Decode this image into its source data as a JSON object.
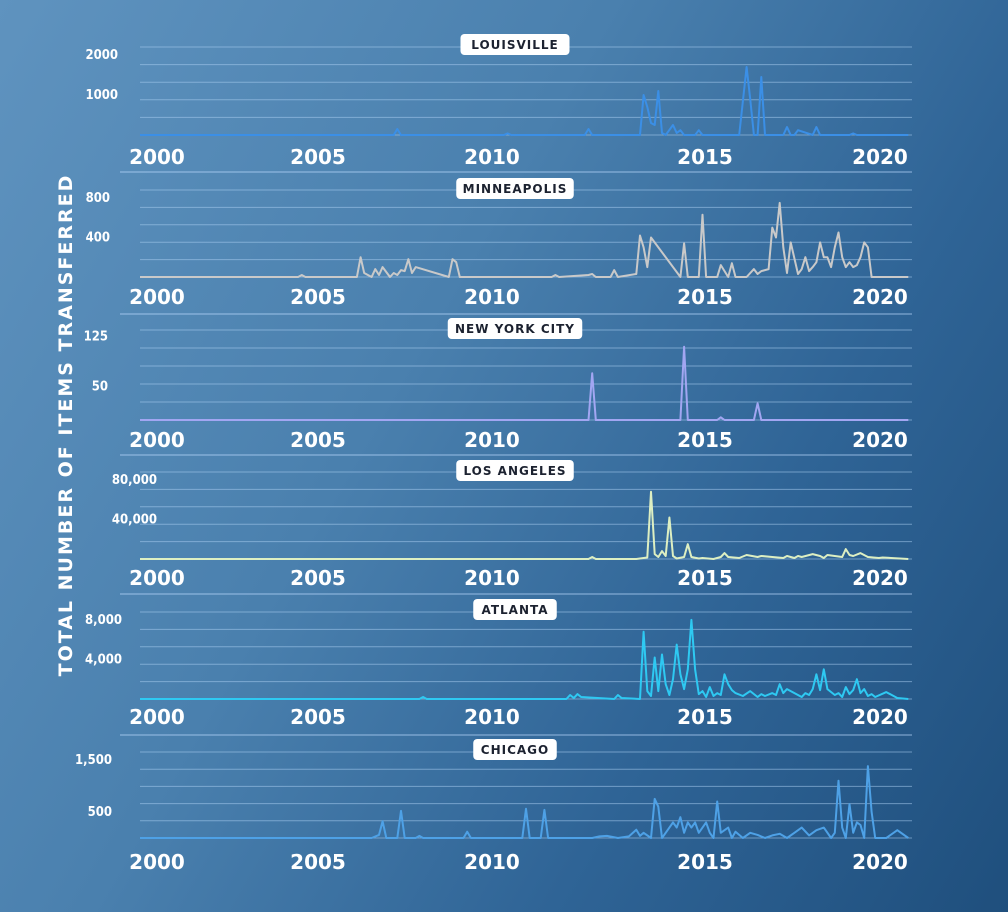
{
  "ylabel": "TOTAL NUMBER OF ITEMS TRANSFERRED",
  "chart_data": [
    {
      "type": "line",
      "title": "LOUISVILLE",
      "color": "#3b8fe6",
      "x": [
        2000,
        2005,
        2006.9,
        2007,
        2007.1,
        2009.9,
        2010,
        2010.1,
        2012.1,
        2012.2,
        2012.3,
        2013.6,
        2013.7,
        2013.8,
        2013.9,
        2014,
        2014.1,
        2014.2,
        2014.3,
        2014.5,
        2014.6,
        2014.7,
        2014.8,
        2015.1,
        2015.2,
        2015.3,
        2016.3,
        2016.5,
        2016.6,
        2016.7,
        2016.8,
        2016.9,
        2017,
        2017.1,
        2017.5,
        2017.6,
        2017.7,
        2017.8,
        2017.9,
        2018.3,
        2018.4,
        2018.5,
        2019.3,
        2019.4,
        2019.5,
        2020,
        2020.9
      ],
      "y": [
        0,
        0,
        0,
        150,
        0,
        0,
        40,
        0,
        0,
        150,
        0,
        0,
        1000,
        700,
        300,
        250,
        1100,
        50,
        0,
        250,
        50,
        120,
        0,
        0,
        120,
        0,
        0,
        1700,
        900,
        0,
        0,
        1450,
        0,
        0,
        0,
        200,
        0,
        0,
        120,
        0,
        200,
        0,
        0,
        40,
        0,
        0,
        0
      ],
      "yticks": [
        "1000",
        "2000"
      ],
      "ytick_values": [
        1000,
        2000
      ],
      "ylim": [
        0,
        2200
      ],
      "xticks": [
        "2000",
        "2005",
        "2010",
        "2015",
        "2020"
      ],
      "xtick_values": [
        2000,
        2005,
        2010,
        2015,
        2020
      ],
      "xlim": [
        2000,
        2021
      ]
    },
    {
      "type": "line",
      "title": "MINNEAPOLIS",
      "color": "#c9c9c9",
      "x": [
        2000,
        2004.3,
        2004.4,
        2004.5,
        2005.9,
        2006,
        2006.1,
        2006.3,
        2006.4,
        2006.5,
        2006.6,
        2006.8,
        2006.9,
        2007.0,
        2007.1,
        2007.2,
        2007.3,
        2007.4,
        2007.5,
        2008.4,
        2008.5,
        2008.6,
        2008.7,
        2011.2,
        2011.3,
        2011.4,
        2012.2,
        2012.3,
        2012.4,
        2012.8,
        2012.9,
        2013,
        2013.5,
        2013.6,
        2013.7,
        2013.8,
        2013.9,
        2014.7,
        2014.8,
        2014.9,
        2015.2,
        2015.3,
        2015.4,
        2015.7,
        2015.8,
        2016,
        2016.1,
        2016.2,
        2016.5,
        2016.7,
        2016.8,
        2016.9,
        2017.1,
        2017.2,
        2017.3,
        2017.4,
        2017.5,
        2017.6,
        2017.7,
        2017.9,
        2018,
        2018.1,
        2018.2,
        2018.3,
        2018.4,
        2018.5,
        2018.6,
        2018.7,
        2018.8,
        2018.9,
        2019,
        2019.1,
        2019.2,
        2019.3,
        2019.4,
        2019.5,
        2019.6,
        2019.7,
        2019.8,
        2019.9,
        2020,
        2020.3,
        2020.5,
        2020.9
      ],
      "y": [
        0,
        0,
        20,
        0,
        0,
        200,
        40,
        0,
        80,
        20,
        100,
        0,
        40,
        20,
        70,
        60,
        180,
        40,
        100,
        0,
        180,
        150,
        0,
        0,
        20,
        0,
        20,
        30,
        0,
        0,
        70,
        0,
        30,
        420,
        300,
        100,
        400,
        0,
        340,
        0,
        0,
        630,
        0,
        0,
        120,
        0,
        140,
        0,
        0,
        80,
        30,
        60,
        80,
        500,
        400,
        750,
        300,
        40,
        350,
        30,
        80,
        200,
        60,
        100,
        150,
        350,
        200,
        200,
        100,
        300,
        450,
        200,
        100,
        150,
        100,
        120,
        200,
        350,
        300,
        0,
        0,
        0,
        0,
        0
      ],
      "yticks": [
        "400",
        "800"
      ],
      "ytick_values": [
        400,
        800
      ],
      "ylim": [
        0,
        880
      ],
      "xticks": [
        "2000",
        "2005",
        "2010",
        "2015",
        "2020"
      ],
      "xtick_values": [
        2000,
        2005,
        2010,
        2015,
        2020
      ],
      "xlim": [
        2000,
        2021
      ]
    },
    {
      "type": "line",
      "title": "NEW YORK CITY",
      "color": "#a2a6f2",
      "x": [
        2000,
        2012.2,
        2012.3,
        2012.4,
        2014.7,
        2014.8,
        2014.9,
        2015.7,
        2015.8,
        2015.9,
        2016.7,
        2016.8,
        2016.9,
        2020.9
      ],
      "y": [
        0,
        0,
        70,
        0,
        0,
        110,
        0,
        0,
        4,
        0,
        0,
        25,
        0,
        0
      ],
      "yticks": [
        "50",
        "125"
      ],
      "ytick_values": [
        50,
        125
      ],
      "ylim": [
        0,
        135
      ],
      "xticks": [
        "2000",
        "2005",
        "2010",
        "2015",
        "2020"
      ],
      "xtick_values": [
        2000,
        2005,
        2010,
        2015,
        2020
      ],
      "xlim": [
        2000,
        2021
      ]
    },
    {
      "type": "line",
      "title": "LOS ANGELES",
      "color": "#ddefc2",
      "x": [
        2000,
        2012.2,
        2012.3,
        2012.4,
        2013.5,
        2013.8,
        2013.9,
        2014,
        2014.1,
        2014.2,
        2014.3,
        2014.4,
        2014.5,
        2014.6,
        2014.8,
        2014.9,
        2015.0,
        2015.2,
        2015.3,
        2015.6,
        2015.8,
        2015.9,
        2016.0,
        2016.3,
        2016.5,
        2016.8,
        2016.9,
        2017.2,
        2017.5,
        2017.6,
        2017.8,
        2017.9,
        2018.0,
        2018.3,
        2018.5,
        2018.6,
        2018.7,
        2019.1,
        2019.2,
        2019.3,
        2019.4,
        2019.6,
        2019.8,
        2020.1,
        2020.2,
        2020.9
      ],
      "y": [
        0,
        0,
        2000,
        0,
        0,
        1500,
        68000,
        5000,
        2000,
        8000,
        3000,
        42000,
        3000,
        500,
        2000,
        15000,
        2000,
        500,
        1000,
        0,
        2000,
        6000,
        2000,
        1000,
        4000,
        2000,
        3000,
        2000,
        1000,
        3000,
        1000,
        3000,
        2000,
        5000,
        3000,
        1000,
        4000,
        2000,
        10000,
        4000,
        3000,
        6000,
        2000,
        1000,
        1500,
        0
      ],
      "yticks": [
        "40,000",
        "80,000"
      ],
      "ytick_values": [
        40000,
        80000
      ],
      "ylim": [
        0,
        88000
      ],
      "xticks": [
        "2000",
        "2005",
        "2010",
        "2015",
        "2020"
      ],
      "xtick_values": [
        2000,
        2005,
        2010,
        2015,
        2020
      ],
      "xlim": [
        2000,
        2021
      ]
    },
    {
      "type": "line",
      "title": "ATLANTA",
      "color": "#2ec9f2",
      "x": [
        2000,
        2007.6,
        2007.7,
        2007.8,
        2011.6,
        2011.7,
        2011.8,
        2011.9,
        2012,
        2012.9,
        2013.0,
        2013.1,
        2013.6,
        2013.7,
        2013.8,
        2013.9,
        2014.0,
        2014.1,
        2014.2,
        2014.3,
        2014.4,
        2014.5,
        2014.6,
        2014.7,
        2014.8,
        2014.9,
        2015.0,
        2015.1,
        2015.2,
        2015.3,
        2015.4,
        2015.5,
        2015.6,
        2015.7,
        2015.8,
        2015.9,
        2016.0,
        2016.1,
        2016.2,
        2016.4,
        2016.6,
        2016.8,
        2016.9,
        2017.0,
        2017.2,
        2017.3,
        2017.4,
        2017.5,
        2017.6,
        2018.0,
        2018.1,
        2018.2,
        2018.3,
        2018.4,
        2018.5,
        2018.6,
        2018.7,
        2018.9,
        2019.0,
        2019.1,
        2019.2,
        2019.3,
        2019.4,
        2019.5,
        2019.6,
        2019.7,
        2019.8,
        2019.9,
        2020.0,
        2020.3,
        2020.6,
        2020.9
      ],
      "y": [
        0,
        0,
        200,
        0,
        0,
        400,
        100,
        500,
        200,
        0,
        400,
        100,
        0,
        6800,
        800,
        300,
        4200,
        800,
        4500,
        1500,
        400,
        2000,
        5500,
        2500,
        1000,
        3000,
        8000,
        3000,
        500,
        800,
        200,
        1200,
        300,
        600,
        400,
        2500,
        1500,
        900,
        600,
        300,
        800,
        200,
        500,
        300,
        600,
        400,
        1500,
        600,
        1000,
        200,
        600,
        400,
        1000,
        2500,
        900,
        3000,
        1000,
        400,
        600,
        200,
        1200,
        500,
        900,
        2000,
        600,
        1000,
        300,
        500,
        200,
        700,
        100,
        0
      ],
      "yticks": [
        "4,000",
        "8,000"
      ],
      "ytick_values": [
        4000,
        8000
      ],
      "ylim": [
        0,
        8800
      ],
      "xticks": [
        "2000",
        "2005",
        "2010",
        "2015",
        "2020"
      ],
      "xtick_values": [
        2000,
        2005,
        2010,
        2015,
        2020
      ],
      "xlim": [
        2000,
        2021
      ]
    },
    {
      "type": "line",
      "title": "CHICAGO",
      "color": "#4ea1e6",
      "x": [
        2000,
        2006.3,
        2006.5,
        2006.6,
        2006.7,
        2007,
        2007.1,
        2007.2,
        2007.5,
        2007.6,
        2007.7,
        2008.8,
        2008.9,
        2009.0,
        2010.4,
        2010.5,
        2010.6,
        2010.9,
        2011.0,
        2011.1,
        2012.3,
        2012.5,
        2012.7,
        2013.0,
        2013.3,
        2013.5,
        2013.6,
        2013.7,
        2013.9,
        2014.0,
        2014.1,
        2014.2,
        2014.3,
        2014.5,
        2014.6,
        2014.7,
        2014.8,
        2014.9,
        2015.0,
        2015.1,
        2015.2,
        2015.3,
        2015.4,
        2015.5,
        2015.6,
        2015.7,
        2015.8,
        2016.0,
        2016.1,
        2016.2,
        2016.4,
        2016.6,
        2016.8,
        2017.0,
        2017.2,
        2017.4,
        2017.6,
        2017.8,
        2018.0,
        2018.2,
        2018.4,
        2018.6,
        2018.8,
        2018.9,
        2019.0,
        2019.1,
        2019.2,
        2019.3,
        2019.4,
        2019.5,
        2019.6,
        2019.7,
        2019.8,
        2019.9,
        2020.0,
        2020.1,
        2020.3,
        2020.6,
        2020.9
      ],
      "y": [
        0,
        0,
        60,
        320,
        0,
        0,
        520,
        0,
        0,
        40,
        0,
        0,
        120,
        0,
        0,
        560,
        0,
        0,
        540,
        0,
        0,
        30,
        40,
        0,
        30,
        160,
        40,
        100,
        0,
        750,
        600,
        0,
        100,
        300,
        200,
        400,
        100,
        300,
        200,
        300,
        100,
        200,
        300,
        100,
        0,
        700,
        100,
        200,
        0,
        120,
        0,
        100,
        60,
        0,
        50,
        80,
        0,
        100,
        200,
        50,
        150,
        200,
        0,
        100,
        1100,
        200,
        0,
        650,
        100,
        300,
        250,
        0,
        1380,
        500,
        0,
        0,
        0,
        150,
        0
      ],
      "yticks": [
        "500",
        "1,500"
      ],
      "ytick_values": [
        500,
        1500
      ],
      "ylim": [
        0,
        1650
      ],
      "xticks": [
        "2000",
        "2005",
        "2010",
        "2015",
        "2020"
      ],
      "xtick_values": [
        2000,
        2005,
        2010,
        2015,
        2020
      ],
      "xlim": [
        2000,
        2021
      ]
    }
  ]
}
